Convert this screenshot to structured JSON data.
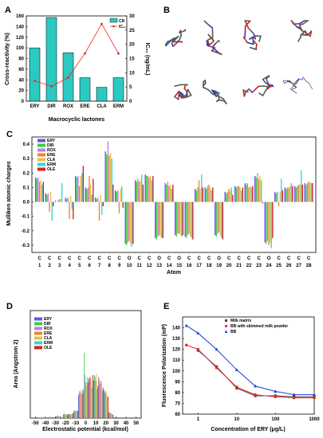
{
  "panels": {
    "a": "A",
    "b": "B",
    "c": "C",
    "d": "D",
    "e": "E"
  },
  "colors": {
    "cr_bar": "#2bc9c2",
    "ic50": "#e8272a",
    "c_series": [
      "#6b52e6",
      "#39d13d",
      "#c47ae9",
      "#e8872a",
      "#e6c33a",
      "#35d6d6",
      "#d61f1f"
    ]
  },
  "panel_b": {
    "icons": [
      "molecule-conformer-icon",
      "molecule-conformer-icon",
      "molecule-conformer-icon",
      "molecule-conformer-icon",
      "molecule-conformer-icon",
      "molecule-conformer-icon",
      "molecule-conformer-icon",
      "erythromycin-structure-icon"
    ]
  },
  "chart_data": [
    {
      "panel": "A",
      "type": "bar",
      "categories": [
        "ERY",
        "DIR",
        "ROX",
        "ERE",
        "CLA",
        "ERM"
      ],
      "series": [
        {
          "name": "CR",
          "values": [
            100,
            157,
            91,
            44,
            26,
            44
          ]
        },
        {
          "name": "IC₅₀",
          "values": [
            7.2,
            5.2,
            8.3,
            16.8,
            27.2,
            16.8
          ]
        }
      ],
      "xlabel": "Macrocyclic lactones",
      "ylabel": "Cross-reactivity (%)",
      "y2label": "IC₅₀ (ng/mL)",
      "ylim": [
        0,
        160
      ],
      "y2lim": [
        0,
        30
      ],
      "yticks": [
        "0",
        "20",
        "40",
        "60",
        "80",
        "100",
        "120",
        "140",
        "160"
      ],
      "y2ticks": [
        "0",
        "5",
        "10",
        "15",
        "20",
        "25",
        "30"
      ]
    },
    {
      "panel": "C",
      "type": "bar",
      "categories": [
        "C\n1",
        "C\n2",
        "C\n3",
        "C\n4",
        "C\n5",
        "C\n6",
        "C\n7",
        "C\n8",
        "C\n9",
        "O\n10",
        "C\n11",
        "C\n12",
        "O\n13",
        "C\n14",
        "O\n15",
        "C\n16",
        "C\n17",
        "C\n18",
        "O\n19",
        "C\n20",
        "C\n21",
        "C\n22",
        "C\n23",
        "O\n24",
        "C\n25",
        "C\n26",
        "C\n27",
        "C\n28"
      ],
      "series": [
        {
          "name": "ERY",
          "values": [
            0.17,
            0.06,
            0.01,
            0.03,
            0.18,
            0.1,
            0.03,
            0.35,
            0.08,
            -0.29,
            0.15,
            0.19,
            -0.25,
            0.13,
            -0.23,
            -0.24,
            0.09,
            0.1,
            -0.23,
            0.07,
            0.11,
            0.13,
            0.18,
            -0.28,
            0.07,
            0.1,
            0.11,
            0.13
          ]
        },
        {
          "name": "DIR",
          "values": [
            0.16,
            0.05,
            0.0,
            0.02,
            0.17,
            0.09,
            0.02,
            0.33,
            0.07,
            -0.3,
            0.14,
            0.18,
            -0.26,
            0.12,
            -0.24,
            -0.25,
            0.08,
            0.09,
            -0.24,
            0.06,
            0.1,
            0.12,
            0.17,
            -0.29,
            0.06,
            0.09,
            0.1,
            0.12
          ]
        },
        {
          "name": "ROX",
          "values": [
            0.17,
            0.06,
            0.01,
            0.03,
            0.18,
            0.1,
            0.03,
            0.42,
            0.08,
            -0.28,
            0.16,
            0.18,
            -0.24,
            0.14,
            -0.22,
            -0.23,
            0.1,
            0.11,
            -0.22,
            0.07,
            0.11,
            0.13,
            0.2,
            -0.27,
            0.07,
            0.1,
            0.11,
            0.13
          ]
        },
        {
          "name": "ERE",
          "values": [
            0.14,
            -0.07,
            0.02,
            -0.12,
            0.11,
            0.18,
            -0.13,
            0.32,
            -0.08,
            -0.27,
            0.14,
            0.17,
            -0.23,
            0.11,
            -0.22,
            -0.22,
            0.15,
            0.12,
            -0.21,
            0.09,
            0.11,
            0.1,
            0.16,
            -0.3,
            -0.03,
            0.1,
            0.12,
            0.14
          ]
        },
        {
          "name": "CLA",
          "values": [
            0.15,
            0.07,
            0.02,
            0.04,
            0.18,
            0.12,
            0.05,
            0.34,
            0.09,
            -0.29,
            0.15,
            0.18,
            -0.24,
            0.12,
            -0.23,
            -0.24,
            0.09,
            0.1,
            -0.23,
            0.08,
            0.1,
            0.11,
            0.18,
            -0.28,
            0.07,
            0.11,
            0.12,
            0.14
          ]
        },
        {
          "name": "ERM",
          "values": [
            0.12,
            -0.13,
            0.13,
            -0.05,
            0.2,
            0.05,
            -0.09,
            0.3,
            0.11,
            -0.31,
            0.19,
            0.15,
            -0.25,
            0.09,
            -0.24,
            -0.25,
            0.19,
            0.08,
            -0.25,
            0.1,
            0.08,
            0.1,
            0.15,
            -0.32,
            0.16,
            0.13,
            0.22,
            0.13
          ]
        },
        {
          "name": "OLE",
          "values": [
            0.14,
            -0.03,
            0.0,
            -0.12,
            0.25,
            0.16,
            -0.03,
            0.12,
            -0.04,
            -0.29,
            0.12,
            0.18,
            -0.25,
            0.12,
            -0.23,
            -0.26,
            0.1,
            0.1,
            -0.26,
            0.05,
            0.1,
            0.11,
            -0.01,
            -0.25,
            0.08,
            0.11,
            0.12,
            0.13
          ]
        }
      ],
      "xlabel": "Atom",
      "ylabel": "Mulliken atomic charges",
      "ylim": [
        -0.35,
        0.45
      ],
      "yticks": [
        "-0.3",
        "-0.2",
        "-0.1",
        "0.0",
        "0.1",
        "0.2",
        "0.3",
        "0.4"
      ]
    },
    {
      "panel": "D",
      "type": "bar",
      "x": [
        -50,
        -40,
        -30,
        -20,
        -10,
        0,
        10,
        20,
        30,
        40,
        50
      ],
      "series": [
        {
          "name": "ERY",
          "bars": [
            [
              -35,
              5
            ],
            [
              -27,
              10
            ],
            [
              -20,
              20
            ],
            [
              -15,
              20
            ],
            [
              -10,
              35
            ],
            [
              -5,
              130
            ],
            [
              0,
              160
            ],
            [
              5,
              220
            ],
            [
              10,
              210
            ],
            [
              15,
              230
            ],
            [
              20,
              160
            ],
            [
              25,
              30
            ]
          ]
        },
        {
          "name": "DIR",
          "bars": [
            [
              -35,
              5
            ],
            [
              -27,
              12
            ],
            [
              -20,
              25
            ],
            [
              -15,
              22
            ],
            [
              -10,
              40
            ],
            [
              -5,
              150
            ],
            [
              0,
              365
            ],
            [
              5,
              230
            ],
            [
              10,
              240
            ],
            [
              15,
              210
            ],
            [
              20,
              150
            ],
            [
              25,
              35
            ]
          ]
        },
        {
          "name": "ROX",
          "bars": [
            [
              -35,
              8
            ],
            [
              -27,
              15
            ],
            [
              -20,
              22
            ],
            [
              -15,
              25
            ],
            [
              -10,
              45
            ],
            [
              -5,
              140
            ],
            [
              0,
              240
            ],
            [
              5,
              220
            ],
            [
              10,
              230
            ],
            [
              15,
              190
            ],
            [
              20,
              140
            ],
            [
              25,
              25
            ]
          ]
        },
        {
          "name": "ERE",
          "bars": [
            [
              -35,
              6
            ],
            [
              -27,
              10
            ],
            [
              -20,
              20
            ],
            [
              -15,
              20
            ],
            [
              -10,
              40
            ],
            [
              -5,
              150
            ],
            [
              0,
              200
            ],
            [
              5,
              230
            ],
            [
              10,
              210
            ],
            [
              15,
              210
            ],
            [
              20,
              150
            ],
            [
              25,
              30
            ]
          ]
        },
        {
          "name": "CLA",
          "bars": [
            [
              -35,
              5
            ],
            [
              -27,
              8
            ],
            [
              -20,
              18
            ],
            [
              -15,
              22
            ],
            [
              -10,
              35
            ],
            [
              -5,
              130
            ],
            [
              0,
              180
            ],
            [
              5,
              210
            ],
            [
              10,
              250
            ],
            [
              15,
              200
            ],
            [
              20,
              140
            ],
            [
              25,
              25
            ]
          ]
        },
        {
          "name": "ERM",
          "bars": [
            [
              -35,
              5
            ],
            [
              -27,
              10
            ],
            [
              -20,
              20
            ],
            [
              -15,
              25
            ],
            [
              -10,
              45
            ],
            [
              -5,
              160
            ],
            [
              0,
              230
            ],
            [
              5,
              170
            ],
            [
              10,
              160
            ],
            [
              15,
              150
            ],
            [
              20,
              120
            ],
            [
              25,
              20
            ]
          ]
        },
        {
          "name": "OLE",
          "bars": [
            [
              -35,
              5
            ],
            [
              -27,
              10
            ],
            [
              -20,
              22
            ],
            [
              -15,
              25
            ],
            [
              -10,
              40
            ],
            [
              -5,
              140
            ],
            [
              0,
              200
            ],
            [
              5,
              240
            ],
            [
              10,
              180
            ],
            [
              15,
              170
            ],
            [
              20,
              120
            ],
            [
              25,
              20
            ]
          ]
        }
      ],
      "xlabel": "Electrostatic potential (kcal/mol)",
      "ylabel": "Area (Angstrom 2)",
      "xlim": [
        -55,
        55
      ],
      "ylim": [
        0,
        600
      ],
      "xticks": [
        "-50",
        "-40",
        "-30",
        "-20",
        "-10",
        "0",
        "10",
        "20",
        "30",
        "40",
        "50"
      ]
    },
    {
      "panel": "E",
      "type": "line",
      "x": [
        0.5,
        1,
        3,
        10,
        30,
        100,
        300,
        1000
      ],
      "xlim": [
        0.4,
        1000
      ],
      "ylim": [
        60,
        150
      ],
      "xscale": "log",
      "series": [
        {
          "name": "Milk matrix",
          "marker": "square",
          "color": "#404040",
          "values": [
            null,
            119,
            104,
            84,
            77,
            77,
            76,
            76
          ]
        },
        {
          "name": "BB with skimmed milk powder",
          "marker": "circle",
          "color": "#e8272a",
          "values": [
            124,
            120,
            103,
            85,
            78,
            76,
            75,
            75
          ]
        },
        {
          "name": "BB",
          "marker": "triangle",
          "color": "#1a3fd6",
          "values": [
            142,
            135,
            120,
            101,
            86,
            81,
            78,
            78
          ]
        }
      ],
      "xlabel": "Concentration of ERY (μg/L)",
      "ylabel": "Fluorescence Polarization (mP)",
      "yticks": [
        "60",
        "70",
        "80",
        "90",
        "100",
        "110",
        "120",
        "130",
        "140"
      ],
      "xticks": [
        "1",
        "10",
        "100",
        "1000"
      ]
    }
  ]
}
